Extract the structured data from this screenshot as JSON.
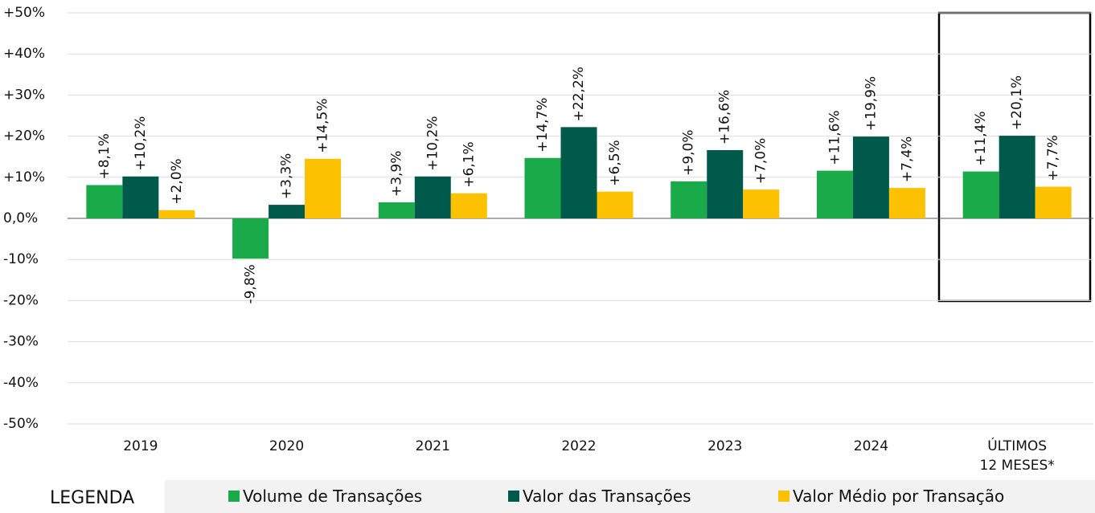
{
  "chart_data": {
    "type": "bar",
    "categories": [
      "2019",
      "2020",
      "2021",
      "2022",
      "2023",
      "2024",
      "ÚLTIMOS\n12 MESES*"
    ],
    "series": [
      {
        "name": "Volume de Transações",
        "color": "#1aaa4a",
        "values": [
          8.1,
          -9.8,
          3.9,
          14.7,
          9.0,
          11.6,
          11.4
        ],
        "value_labels": [
          "+8,1%",
          "-9,8%",
          "+3,9%",
          "+14,7%",
          "+9,0%",
          "+11,6%",
          "+11,4%"
        ]
      },
      {
        "name": "Valor das Transações",
        "color": "#005a4b",
        "values": [
          10.2,
          3.3,
          10.2,
          22.2,
          16.6,
          19.9,
          20.1
        ],
        "value_labels": [
          "+10,2%",
          "+3,3%",
          "+10,2%",
          "+22,2%",
          "+16,6%",
          "+19,9%",
          "+20,1%"
        ]
      },
      {
        "name": "Valor Médio por Transação",
        "color": "#fcc100",
        "values": [
          2.0,
          14.5,
          6.1,
          6.5,
          7.0,
          7.4,
          7.7
        ],
        "value_labels": [
          "+2,0%",
          "+14,5%",
          "+6,1%",
          "+6,5%",
          "+7,0%",
          "+7,4%",
          "+7,7%"
        ]
      }
    ],
    "ylim": [
      -50,
      50
    ],
    "yticks": [
      {
        "value": 50,
        "label": "+50%"
      },
      {
        "value": 40,
        "label": "+40%"
      },
      {
        "value": 30,
        "label": "+30%"
      },
      {
        "value": 20,
        "label": "+20%"
      },
      {
        "value": 10,
        "label": "+10%"
      },
      {
        "value": 0,
        "label": "0,0%"
      },
      {
        "value": -10,
        "label": "-10%"
      },
      {
        "value": -20,
        "label": "-20%"
      },
      {
        "value": -30,
        "label": "-30%"
      },
      {
        "value": -40,
        "label": "-40%"
      },
      {
        "value": -50,
        "label": "-50%"
      }
    ],
    "grid": true,
    "legend_title": "LEGENDA"
  }
}
